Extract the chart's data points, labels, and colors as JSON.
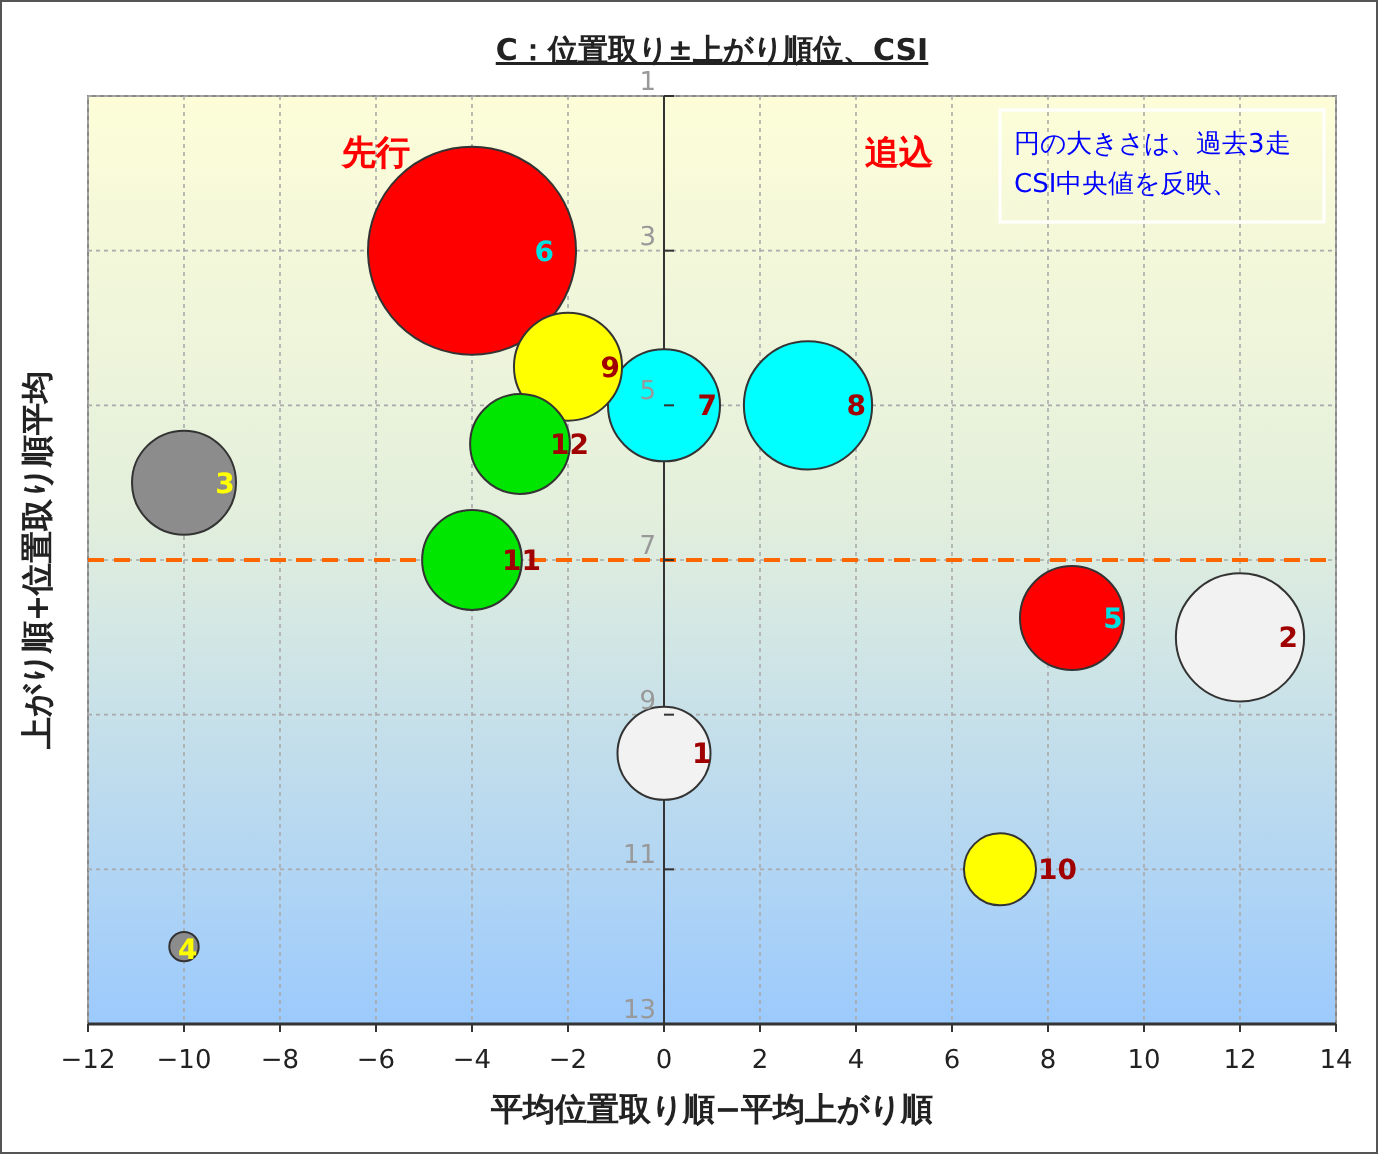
{
  "chart_data": {
    "type": "bubble",
    "title": "C：位置取り±上がり順位、CSI",
    "xlabel": "平均位置取り順−平均上がり順",
    "ylabel": "上がり順+位置取り順平均",
    "xlim": [
      -12,
      14
    ],
    "xticks": [
      -12,
      -10,
      -8,
      -6,
      -4,
      -2,
      0,
      2,
      4,
      6,
      8,
      10,
      12,
      14
    ],
    "ylim": [
      13,
      1
    ],
    "yticks": [
      1,
      3,
      5,
      7,
      9,
      11,
      13
    ],
    "grid": true,
    "series": [
      {
        "name": "1",
        "color": "#f2f2f2",
        "x": [
          0
        ],
        "values": [
          9.5
        ],
        "sizes": [
          0.2
        ]
      },
      {
        "name": "2",
        "color": "#f2f2f2",
        "x": [
          12
        ],
        "values": [
          8
        ],
        "sizes": [
          0.38
        ]
      },
      {
        "name": "3",
        "color": "#8c8c8c",
        "x": [
          -10
        ],
        "values": [
          6
        ],
        "sizes": [
          0.25
        ]
      },
      {
        "name": "4",
        "color": "#8c8c8c",
        "x": [
          -10
        ],
        "values": [
          12
        ],
        "sizes": [
          0.02
        ]
      },
      {
        "name": "5",
        "color": "#ff0000",
        "x": [
          8.5
        ],
        "values": [
          7.75
        ],
        "sizes": [
          0.25
        ]
      },
      {
        "name": "6",
        "color": "#ff0000",
        "x": [
          -4
        ],
        "values": [
          3
        ],
        "sizes": [
          1
        ]
      },
      {
        "name": "7",
        "color": "#00ffff",
        "x": [
          0
        ],
        "values": [
          5
        ],
        "sizes": [
          0.29
        ]
      },
      {
        "name": "8",
        "color": "#00ffff",
        "x": [
          3
        ],
        "values": [
          5
        ],
        "sizes": [
          0.38
        ]
      },
      {
        "name": "9",
        "color": "#ffff00",
        "x": [
          -2
        ],
        "values": [
          4.5
        ],
        "sizes": [
          0.27
        ]
      },
      {
        "name": "10",
        "color": "#ffff00",
        "x": [
          7
        ],
        "values": [
          11
        ],
        "sizes": [
          0.12
        ]
      },
      {
        "name": "11",
        "color": "#00e600",
        "x": [
          -4
        ],
        "values": [
          7
        ],
        "sizes": [
          0.23
        ]
      },
      {
        "name": "12",
        "color": "#00e600",
        "x": [
          -3
        ],
        "values": [
          5.5
        ],
        "sizes": [
          0.23
        ]
      }
    ],
    "ref_lines": [
      {
        "axis": "y",
        "value": 7,
        "color": "#ff6600",
        "line_style": "dashed"
      }
    ],
    "annotations": [
      "先行",
      "追込",
      "円の大きさは、過去3走\nCSI中央値を反映、"
    ]
  }
}
